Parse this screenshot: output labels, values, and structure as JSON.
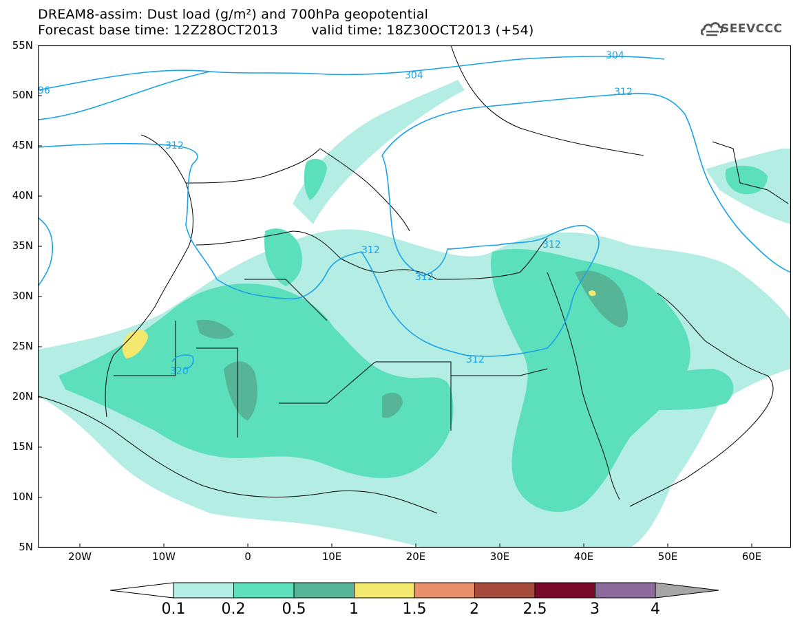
{
  "title": {
    "line1": "DREAM8-assim: Dust load (g/m²) and 700hPa geopotential",
    "base_time": "Forecast base time: 12Z28OCT2013",
    "valid_time": "valid time: 18Z30OCT2013 (+54)"
  },
  "logo": {
    "text": "SEEVCCC",
    "icon": "cloud-logo-icon"
  },
  "map": {
    "lat_labels": [
      "55N",
      "50N",
      "45N",
      "40N",
      "35N",
      "30N",
      "25N",
      "20N",
      "15N",
      "10N",
      "5N"
    ],
    "lon_labels": [
      "20W",
      "10W",
      "0",
      "10E",
      "20E",
      "30E",
      "40E",
      "50E",
      "60E"
    ],
    "contour_labels": [
      "96",
      "304",
      "304",
      "312",
      "312",
      "312",
      "312",
      "312",
      "312",
      "320"
    ]
  },
  "colorbar": {
    "labels": [
      "0.1",
      "0.2",
      "0.5",
      "1",
      "1.5",
      "2",
      "2.5",
      "3",
      "4"
    ],
    "colors": [
      "#ffffff",
      "#b4ede3",
      "#5ce0bb",
      "#55b596",
      "#f2e96e",
      "#e9906a",
      "#a64b3c",
      "#7a0a29",
      "#8c6a9c",
      "#a6a6a6"
    ]
  }
}
